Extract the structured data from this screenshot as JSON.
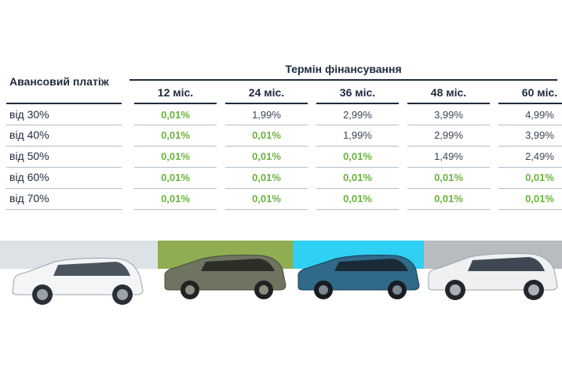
{
  "table": {
    "row_header": "Авансовий платіж",
    "group_header": "Термін фінансування",
    "columns": [
      "12 міс.",
      "24 міс.",
      "36 міс.",
      "48 міс.",
      "60 міс."
    ],
    "rows": [
      {
        "label": "від 30%",
        "values": [
          "0,01%",
          "1,99%",
          "2,99%",
          "3,99%",
          "4,99%"
        ],
        "highlight": [
          true,
          false,
          false,
          false,
          false
        ]
      },
      {
        "label": "від 40%",
        "values": [
          "0,01%",
          "0,01%",
          "1,99%",
          "2,99%",
          "3,99%"
        ],
        "highlight": [
          true,
          true,
          false,
          false,
          false
        ]
      },
      {
        "label": "від 50%",
        "values": [
          "0,01%",
          "0,01%",
          "0,01%",
          "1,49%",
          "2,49%"
        ],
        "highlight": [
          true,
          true,
          true,
          false,
          false
        ]
      },
      {
        "label": "від 60%",
        "values": [
          "0,01%",
          "0,01%",
          "0,01%",
          "0,01%",
          "0,01%"
        ],
        "highlight": [
          true,
          true,
          true,
          true,
          true
        ]
      },
      {
        "label": "від 70%",
        "values": [
          "0,01%",
          "0,01%",
          "0,01%",
          "0,01%",
          "0,01%"
        ],
        "highlight": [
          true,
          true,
          true,
          true,
          true
        ]
      }
    ]
  },
  "colors": {
    "text": "#1e2b3c",
    "highlight": "#6bb43c",
    "panel_1": "#dde2e7",
    "panel_2": "#8fae52",
    "panel_3": "#2fd0f3",
    "panel_4": "#b8bcc0"
  },
  "cars": [
    {
      "name": "white-hatchback",
      "body": "#f4f5f6"
    },
    {
      "name": "olive-suv",
      "body": "#6e7460"
    },
    {
      "name": "blue-suv",
      "body": "#2f6a89"
    },
    {
      "name": "white-suv",
      "body": "#eef0f2"
    }
  ]
}
